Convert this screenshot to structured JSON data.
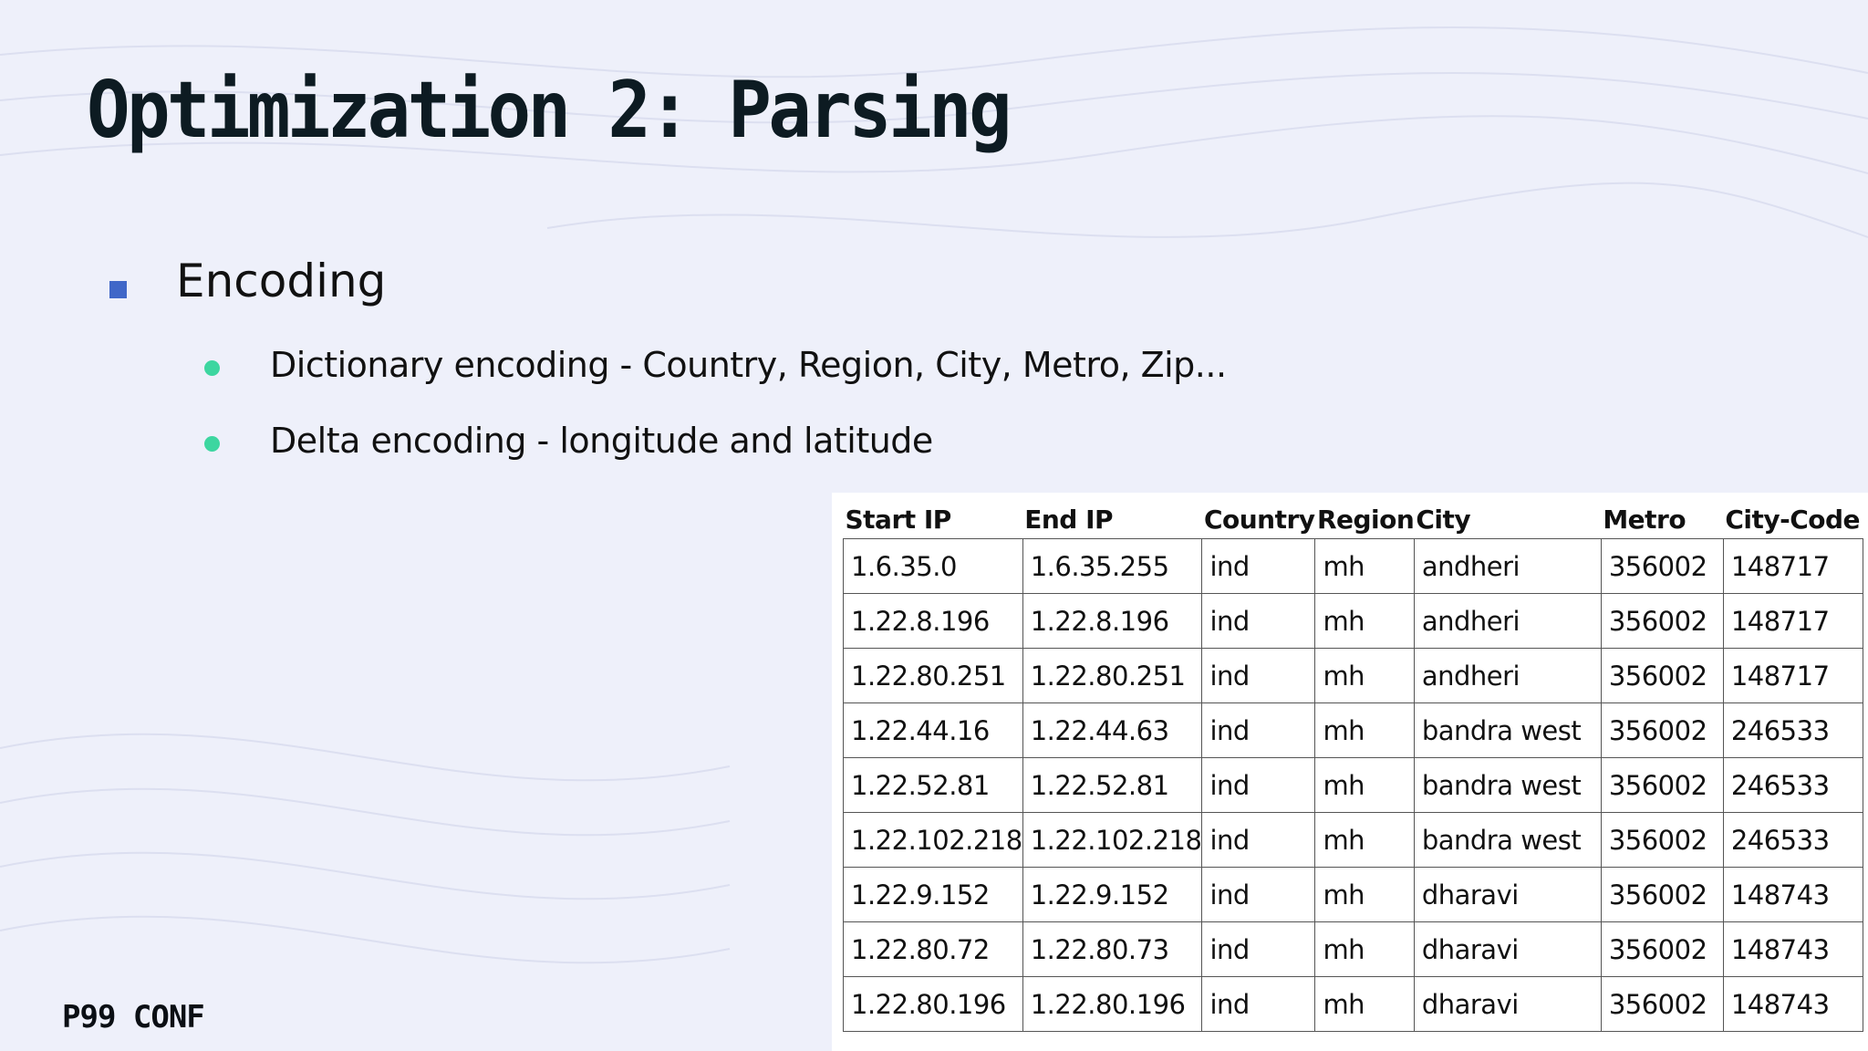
{
  "slide": {
    "title": "Optimization 2: Parsing",
    "bullet": "Encoding",
    "sub_bullets": [
      "Dictionary encoding - Country, Region, City, Metro, Zip...",
      "Delta encoding - longitude and latitude"
    ],
    "logo": "P99 CONF",
    "colors": {
      "bullet_square": "#4067c8",
      "bullet_dot": "#3dd6a0",
      "background": "#eef0fa"
    }
  },
  "table": {
    "headers": [
      "Start IP",
      "End IP",
      "Country",
      "Region",
      "City",
      "Metro",
      "City-Code"
    ],
    "rows": [
      [
        "1.6.35.0",
        "1.6.35.255",
        "ind",
        "mh",
        "andheri",
        "356002",
        "148717"
      ],
      [
        "1.22.8.196",
        "1.22.8.196",
        "ind",
        "mh",
        "andheri",
        "356002",
        "148717"
      ],
      [
        "1.22.80.251",
        "1.22.80.251",
        "ind",
        "mh",
        "andheri",
        "356002",
        "148717"
      ],
      [
        "1.22.44.16",
        "1.22.44.63",
        "ind",
        "mh",
        "bandra west",
        "356002",
        "246533"
      ],
      [
        "1.22.52.81",
        "1.22.52.81",
        "ind",
        "mh",
        "bandra west",
        "356002",
        "246533"
      ],
      [
        "1.22.102.218",
        "1.22.102.218",
        "ind",
        "mh",
        "bandra west",
        "356002",
        "246533"
      ],
      [
        "1.22.9.152",
        "1.22.9.152",
        "ind",
        "mh",
        "dharavi",
        "356002",
        "148743"
      ],
      [
        "1.22.80.72",
        "1.22.80.73",
        "ind",
        "mh",
        "dharavi",
        "356002",
        "148743"
      ],
      [
        "1.22.80.196",
        "1.22.80.196",
        "ind",
        "mh",
        "dharavi",
        "356002",
        "148743"
      ]
    ]
  }
}
